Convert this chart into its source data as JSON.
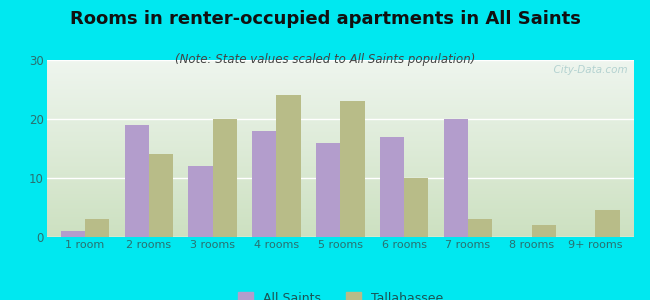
{
  "title": "Rooms in renter-occupied apartments in All Saints",
  "subtitle": "(Note: State values scaled to All Saints population)",
  "categories": [
    "1 room",
    "2 rooms",
    "3 rooms",
    "4 rooms",
    "5 rooms",
    "6 rooms",
    "7 rooms",
    "8 rooms",
    "9+ rooms"
  ],
  "all_saints": [
    1,
    19,
    12,
    18,
    16,
    17,
    20,
    0,
    0
  ],
  "tallahassee": [
    3,
    14,
    20,
    24,
    23,
    10,
    3,
    2,
    4.5
  ],
  "all_saints_color": "#b39dcc",
  "tallahassee_color": "#b8bc88",
  "bg_outer": "#00e8f0",
  "bg_plot_top_color": "#ddeedd",
  "bg_plot_bottom_color": "#c8dfc0",
  "ylim": [
    0,
    30
  ],
  "yticks": [
    0,
    10,
    20,
    30
  ],
  "bar_width": 0.38,
  "watermark": "  City-Data.com",
  "legend_all_saints": "All Saints",
  "legend_tallahassee": "Tallahassee",
  "title_fontsize": 13,
  "subtitle_fontsize": 8.5,
  "tick_fontsize": 8,
  "legend_fontsize": 9
}
